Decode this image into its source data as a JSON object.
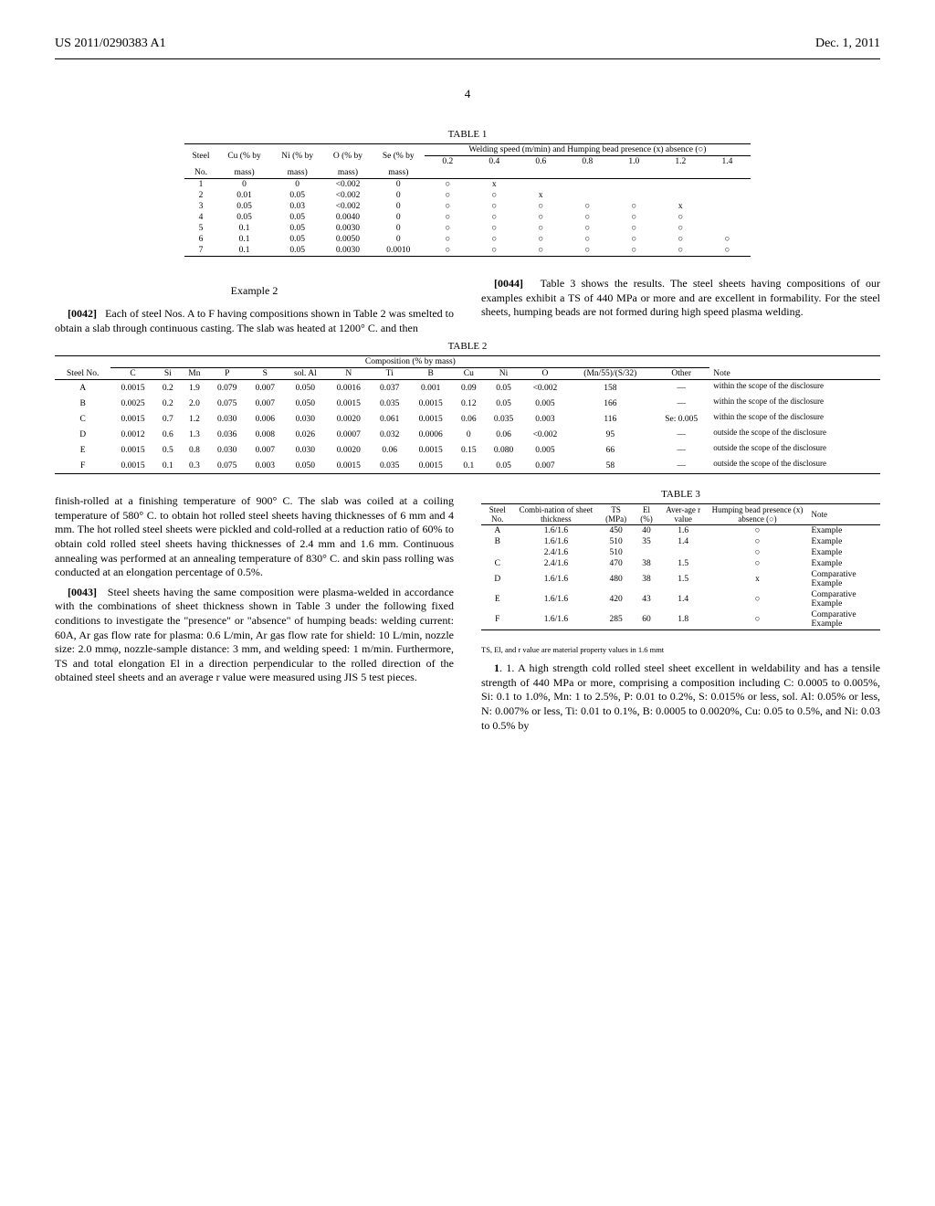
{
  "header": {
    "left": "US 2011/0290383 A1",
    "right": "Dec. 1, 2011",
    "page_number": "4"
  },
  "table1": {
    "caption": "TABLE 1",
    "header_row1": [
      "Steel",
      "Cu (% by",
      "Ni (% by",
      "O (% by",
      "Se (% by",
      "Welding speed (m/min) and Humping bead presence (x) absence (○)"
    ],
    "speed_cols": [
      "0.2",
      "0.4",
      "0.6",
      "0.8",
      "1.0",
      "1.2",
      "1.4"
    ],
    "unit_row": [
      "No.",
      "mass)",
      "mass)",
      "mass)",
      "mass)"
    ],
    "rows": [
      [
        "1",
        "0",
        "0",
        "<0.002",
        "0",
        "○",
        "x",
        "",
        "",
        "",
        "",
        ""
      ],
      [
        "2",
        "0.01",
        "0.05",
        "<0.002",
        "0",
        "○",
        "○",
        "x",
        "",
        "",
        "",
        ""
      ],
      [
        "3",
        "0.05",
        "0.03",
        "<0.002",
        "0",
        "○",
        "○",
        "○",
        "○",
        "○",
        "x",
        ""
      ],
      [
        "4",
        "0.05",
        "0.05",
        "0.0040",
        "0",
        "○",
        "○",
        "○",
        "○",
        "○",
        "○",
        ""
      ],
      [
        "5",
        "0.1",
        "0.05",
        "0.0030",
        "0",
        "○",
        "○",
        "○",
        "○",
        "○",
        "○",
        ""
      ],
      [
        "6",
        "0.1",
        "0.05",
        "0.0050",
        "0",
        "○",
        "○",
        "○",
        "○",
        "○",
        "○",
        "○"
      ],
      [
        "7",
        "0.1",
        "0.05",
        "0.0030",
        "0.0010",
        "○",
        "○",
        "○",
        "○",
        "○",
        "○",
        "○"
      ]
    ]
  },
  "example2": {
    "heading": "Example 2",
    "para_0042": "Each of steel Nos. A to F having compositions shown in Table 2 was smelted to obtain a slab through continuous casting. The slab was heated at 1200° C. and then",
    "para_0044": "Table 3 shows the results. The steel sheets having compositions of our examples exhibit a TS of 440 MPa or more and are excellent in formability. For the steel sheets, humping beads are not formed during high speed plasma welding."
  },
  "table2": {
    "caption": "TABLE 2",
    "composition_label": "Composition (% by mass)",
    "cols": [
      "Steel No.",
      "C",
      "Si",
      "Mn",
      "P",
      "S",
      "sol. Al",
      "N",
      "Ti",
      "B",
      "Cu",
      "Ni",
      "O",
      "(Mn/55)/(S/32)",
      "Other",
      "Note"
    ],
    "rows": [
      [
        "A",
        "0.0015",
        "0.2",
        "1.9",
        "0.079",
        "0.007",
        "0.050",
        "0.0016",
        "0.037",
        "0.001",
        "0.09",
        "0.05",
        "<0.002",
        "158",
        "—",
        "within the scope of the disclosure"
      ],
      [
        "B",
        "0.0025",
        "0.2",
        "2.0",
        "0.075",
        "0.007",
        "0.050",
        "0.0015",
        "0.035",
        "0.0015",
        "0.12",
        "0.05",
        "0.005",
        "166",
        "—",
        "within the scope of the disclosure"
      ],
      [
        "C",
        "0.0015",
        "0.7",
        "1.2",
        "0.030",
        "0.006",
        "0.030",
        "0.0020",
        "0.061",
        "0.0015",
        "0.06",
        "0.035",
        "0.003",
        "116",
        "Se: 0.005",
        "within the scope of the disclosure"
      ],
      [
        "D",
        "0.0012",
        "0.6",
        "1.3",
        "0.036",
        "0.008",
        "0.026",
        "0.0007",
        "0.032",
        "0.0006",
        "0",
        "0.06",
        "<0.002",
        "95",
        "—",
        "outside the scope of the disclosure"
      ],
      [
        "E",
        "0.0015",
        "0.5",
        "0.8",
        "0.030",
        "0.007",
        "0.030",
        "0.0020",
        "0.06",
        "0.0015",
        "0.15",
        "0.080",
        "0.005",
        "66",
        "—",
        "outside the scope of the disclosure"
      ],
      [
        "F",
        "0.0015",
        "0.1",
        "0.3",
        "0.075",
        "0.003",
        "0.050",
        "0.0015",
        "0.035",
        "0.0015",
        "0.1",
        "0.05",
        "0.007",
        "58",
        "—",
        "outside the scope of the disclosure"
      ]
    ]
  },
  "mid_text": {
    "continued": "finish-rolled at a finishing temperature of 900° C. The slab was coiled at a coiling temperature of 580° C. to obtain hot rolled steel sheets having thicknesses of 6 mm and 4 mm. The hot rolled steel sheets were pickled and cold-rolled at a reduction ratio of 60% to obtain cold rolled steel sheets having thicknesses of 2.4 mm and 1.6 mm. Continuous annealing was performed at an annealing temperature of 830° C. and skin pass rolling was conducted at an elongation percentage of 0.5%.",
    "para_0043": "Steel sheets having the same composition were plasma-welded in accordance with the combinations of sheet thickness shown in Table 3 under the following fixed conditions to investigate the \"presence\" or \"absence\" of humping beads: welding current: 60A, Ar gas flow rate for plasma: 0.6 L/min, Ar gas flow rate for shield: 10 L/min, nozzle size: 2.0 mmφ, nozzle-sample distance: 3 mm, and welding speed: 1 m/min. Furthermore, TS and total elongation El in a direction perpendicular to the rolled direction of the obtained steel sheets and an average r value were measured using JIS 5 test pieces."
  },
  "table3": {
    "caption": "TABLE 3",
    "cols": [
      "Steel No.",
      "Combi-nation of sheet thickness",
      "TS (MPa)",
      "El (%)",
      "Aver-age r value",
      "Humping bead presence (x) absence (○)",
      "Note"
    ],
    "rows": [
      [
        "A",
        "1.6/1.6",
        "450",
        "40",
        "1.6",
        "○",
        "Example"
      ],
      [
        "B",
        "1.6/1.6",
        "510",
        "35",
        "1.4",
        "○",
        "Example"
      ],
      [
        "",
        "2.4/1.6",
        "510",
        "",
        "",
        "○",
        "Example"
      ],
      [
        "C",
        "2.4/1.6",
        "470",
        "38",
        "1.5",
        "○",
        "Example"
      ],
      [
        "D",
        "1.6/1.6",
        "480",
        "38",
        "1.5",
        "x",
        "Comparative Example"
      ],
      [
        "E",
        "1.6/1.6",
        "420",
        "43",
        "1.4",
        "○",
        "Comparative Example"
      ],
      [
        "F",
        "1.6/1.6",
        "285",
        "60",
        "1.8",
        "○",
        "Comparative Example"
      ]
    ],
    "footnote": "TS, El, and r value are material property values in 1.6 mmt"
  },
  "claim": {
    "text": "1. A high strength cold rolled steel sheet excellent in weldability and has a tensile strength of 440 MPa or more, comprising a composition including C: 0.0005 to 0.005%, Si: 0.1 to 1.0%, Mn: 1 to 2.5%, P: 0.01 to 0.2%, S: 0.015% or less, sol. Al: 0.05% or less, N: 0.007% or less, Ti: 0.01 to 0.1%, B: 0.0005 to 0.0020%, Cu: 0.05 to 0.5%, and Ni: 0.03 to 0.5% by"
  }
}
